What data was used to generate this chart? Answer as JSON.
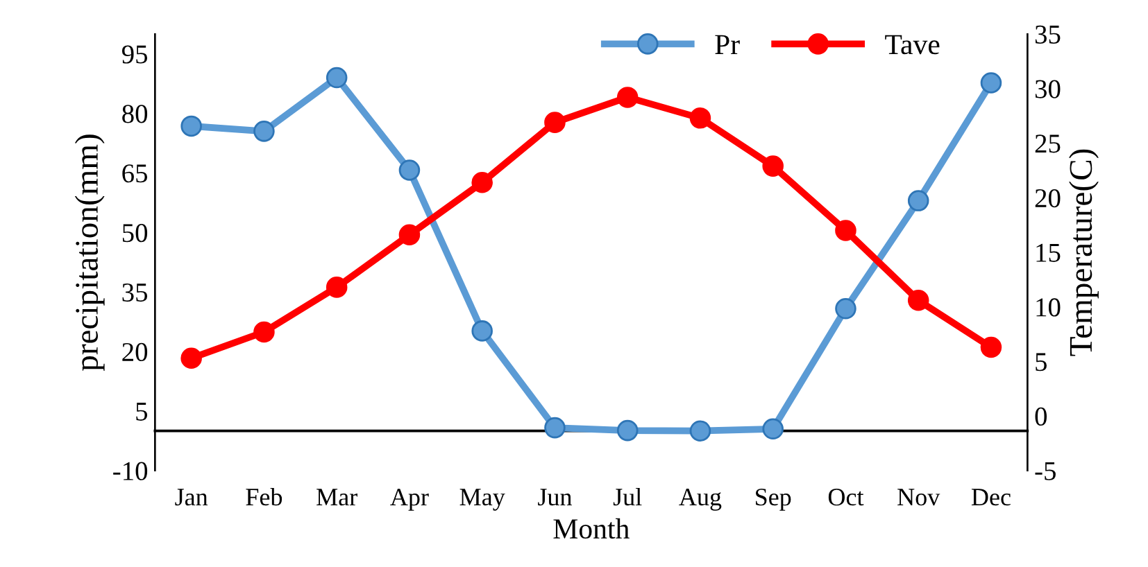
{
  "chart_data": {
    "type": "line",
    "xlabel": "Month",
    "ylabel": "precipitation(mm)",
    "y2label": "Temperature(C)",
    "categories": [
      "Jan",
      "Feb",
      "Mar",
      "Apr",
      "May",
      "Jun",
      "Jul",
      "Aug",
      "Sep",
      "Oct",
      "Nov",
      "Dec"
    ],
    "series": [
      {
        "name": "Pr",
        "color": "#5b9bd5",
        "values": [
          76.8,
          75.5,
          89,
          65.7,
          25.2,
          0.8,
          0.1,
          0,
          0.5,
          30.8,
          58,
          87.7
        ]
      },
      {
        "name": "Tave",
        "color": "#ff0000",
        "axis": "y2",
        "values": [
          5.3,
          7.7,
          11.8,
          16.6,
          21.4,
          26.9,
          29.2,
          27.3,
          22.9,
          17.0,
          10.6,
          6.3
        ]
      }
    ],
    "ylim": [
      -10,
      100
    ],
    "yticks": [
      -10,
      5,
      20,
      35,
      50,
      65,
      80,
      95
    ],
    "y2lim": [
      -5,
      35
    ],
    "y2ticks": [
      -5,
      0,
      5,
      10,
      15,
      20,
      25,
      30,
      35
    ],
    "marker": "circle",
    "line_style": "solid",
    "legend": "top right",
    "grid": false
  }
}
